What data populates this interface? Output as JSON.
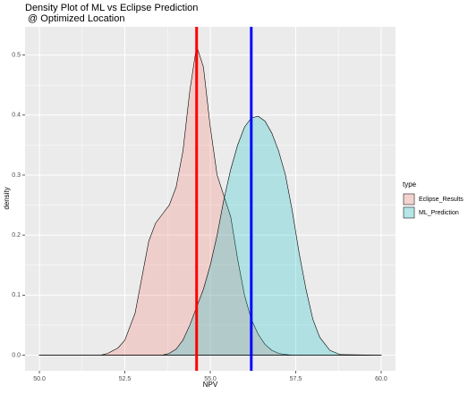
{
  "chart_data": {
    "type": "density",
    "title_lines": [
      "Density Plot of ML vs Eclipse Prediction",
      " @ Optimized Location"
    ],
    "x_label": "NPV",
    "y_label": "density",
    "legend_title": "type",
    "x": [
      50,
      51.5,
      51.8,
      52,
      52.3,
      52.5,
      52.8,
      53,
      53.2,
      53.4,
      53.6,
      53.8,
      54,
      54.2,
      54.4,
      54.6,
      54.8,
      55,
      55.2,
      55.4,
      55.6,
      55.8,
      56,
      56.2,
      56.4,
      56.6,
      56.8,
      57,
      57.2,
      57.4,
      57.6,
      57.8,
      58,
      58.2,
      58.5,
      58.8,
      60
    ],
    "series": [
      {
        "name": "Eclipse_Results",
        "color": "#F8766D",
        "values": [
          0,
          0,
          0,
          0.003,
          0.012,
          0.025,
          0.07,
          0.13,
          0.19,
          0.22,
          0.235,
          0.25,
          0.28,
          0.34,
          0.44,
          0.515,
          0.48,
          0.38,
          0.3,
          0.265,
          0.23,
          0.16,
          0.1,
          0.06,
          0.035,
          0.018,
          0.008,
          0.003,
          0.001,
          0,
          0,
          0,
          0,
          0,
          0,
          0,
          0
        ]
      },
      {
        "name": "ML_Prediction",
        "color": "#00BFC4",
        "values": [
          0,
          0,
          0,
          0,
          0,
          0,
          0,
          0,
          0,
          0,
          0,
          0.003,
          0.01,
          0.025,
          0.05,
          0.08,
          0.11,
          0.15,
          0.2,
          0.26,
          0.31,
          0.35,
          0.38,
          0.395,
          0.398,
          0.39,
          0.37,
          0.34,
          0.3,
          0.24,
          0.17,
          0.11,
          0.06,
          0.03,
          0.008,
          0.001,
          0
        ]
      }
    ],
    "vlines": [
      {
        "x": 54.6,
        "color": "#FF0000"
      },
      {
        "x": 56.2,
        "color": "#0000FF"
      }
    ],
    "xlim": [
      49.58,
      60.42
    ],
    "ylim": [
      -0.026,
      0.547
    ],
    "xticks": [
      {
        "value": 50,
        "label": "50.0"
      },
      52.5,
      {
        "value": 55,
        "label": "55.0"
      },
      57.5,
      {
        "value": 60,
        "label": "60.0"
      }
    ],
    "yticks": [
      {
        "value": 0,
        "label": "0.0"
      },
      0.1,
      0.2,
      0.3,
      0.4,
      0.5
    ],
    "grid": true
  }
}
